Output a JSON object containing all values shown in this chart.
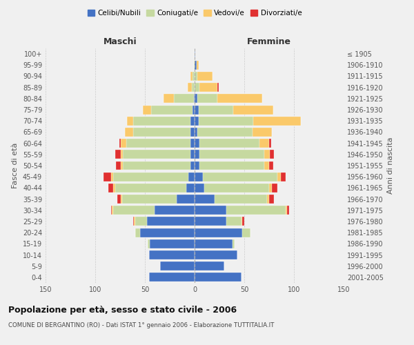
{
  "age_groups": [
    "0-4",
    "5-9",
    "10-14",
    "15-19",
    "20-24",
    "25-29",
    "30-34",
    "35-39",
    "40-44",
    "45-49",
    "50-54",
    "55-59",
    "60-64",
    "65-69",
    "70-74",
    "75-79",
    "80-84",
    "85-89",
    "90-94",
    "95-99",
    "100+"
  ],
  "birth_years": [
    "2001-2005",
    "1996-2000",
    "1991-1995",
    "1986-1990",
    "1981-1985",
    "1976-1980",
    "1971-1975",
    "1966-1970",
    "1961-1965",
    "1956-1960",
    "1951-1955",
    "1946-1950",
    "1941-1945",
    "1936-1940",
    "1931-1935",
    "1926-1930",
    "1921-1925",
    "1916-1920",
    "1911-1915",
    "1906-1910",
    "≤ 1905"
  ],
  "maschi_celibi": [
    46,
    35,
    46,
    45,
    55,
    48,
    40,
    18,
    8,
    6,
    4,
    4,
    4,
    4,
    4,
    2,
    1,
    0,
    0,
    0,
    0
  ],
  "maschi_coniugati": [
    0,
    0,
    0,
    2,
    5,
    12,
    42,
    55,
    72,
    76,
    68,
    68,
    65,
    58,
    58,
    42,
    20,
    3,
    2,
    1,
    0
  ],
  "maschi_vedovi": [
    0,
    0,
    0,
    0,
    0,
    1,
    1,
    1,
    2,
    2,
    2,
    2,
    5,
    8,
    6,
    8,
    10,
    4,
    2,
    0,
    0
  ],
  "maschi_divorziati": [
    0,
    0,
    0,
    0,
    0,
    1,
    1,
    4,
    5,
    8,
    5,
    6,
    2,
    0,
    0,
    0,
    0,
    0,
    0,
    0,
    0
  ],
  "femmine_celibi": [
    47,
    30,
    43,
    38,
    48,
    32,
    32,
    20,
    10,
    8,
    5,
    5,
    5,
    3,
    4,
    4,
    3,
    0,
    0,
    2,
    1
  ],
  "femmine_coniugati": [
    0,
    0,
    0,
    2,
    8,
    15,
    60,
    53,
    65,
    75,
    65,
    65,
    60,
    55,
    55,
    35,
    20,
    5,
    3,
    0,
    0
  ],
  "femmine_vedovi": [
    0,
    0,
    0,
    0,
    0,
    1,
    1,
    2,
    3,
    4,
    5,
    6,
    10,
    20,
    48,
    40,
    45,
    18,
    15,
    2,
    0
  ],
  "femmine_divorziati": [
    0,
    0,
    0,
    0,
    0,
    2,
    2,
    5,
    5,
    5,
    4,
    4,
    2,
    0,
    0,
    0,
    0,
    1,
    0,
    0,
    0
  ],
  "color_celibi": "#4472c4",
  "color_coniugati": "#c6d9a0",
  "color_vedovi": "#fac96a",
  "color_divorziati": "#e03030",
  "title": "Popolazione per età, sesso e stato civile - 2006",
  "subtitle": "COMUNE DI BERGANTINO (RO) - Dati ISTAT 1° gennaio 2006 - Elaborazione TUTTITALIA.IT",
  "xlabel_left": "Maschi",
  "xlabel_right": "Femmine",
  "ylabel_left": "Fasce di età",
  "ylabel_right": "Anni di nascita",
  "xlim": 150,
  "legend_labels": [
    "Celibi/Nubili",
    "Coniugati/e",
    "Vedovi/e",
    "Divorziati/e"
  ],
  "background_color": "#f0f0f0",
  "grid_color": "#cccccc"
}
